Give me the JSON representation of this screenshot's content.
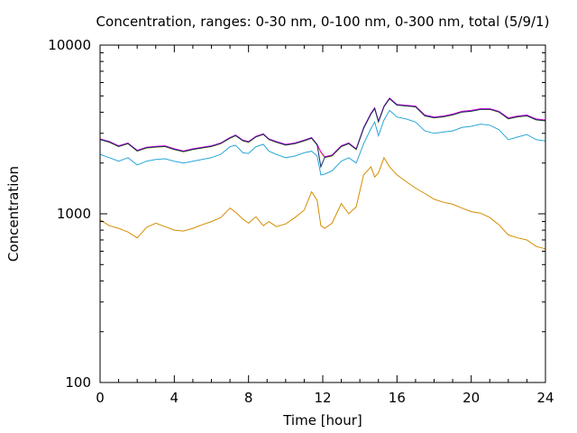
{
  "chart_data": {
    "type": "line",
    "title": "Concentration, ranges: 0-30 nm, 0-100 nm, 0-300 nm, total (5/9/1)",
    "xlabel": "Time [hour]",
    "ylabel": "Concentration",
    "xlim": [
      0,
      24
    ],
    "ylim": [
      100,
      10000
    ],
    "y_scale": "log",
    "grid": false,
    "x_ticks": [
      {
        "value": 0,
        "label": "0"
      },
      {
        "value": 4,
        "label": "4"
      },
      {
        "value": 8,
        "label": "8"
      },
      {
        "value": 12,
        "label": "12"
      },
      {
        "value": 16,
        "label": "16"
      },
      {
        "value": 20,
        "label": "20"
      },
      {
        "value": 24,
        "label": "24"
      }
    ],
    "y_ticks": [
      {
        "value": 100,
        "label": "100"
      },
      {
        "value": 1000,
        "label": "1000"
      },
      {
        "value": 10000,
        "label": "10000"
      }
    ],
    "x": [
      0,
      0.5,
      1,
      1.5,
      2,
      2.5,
      3,
      3.5,
      4,
      4.5,
      5,
      5.5,
      6,
      6.5,
      7,
      7.3,
      7.7,
      8,
      8.4,
      8.8,
      9.1,
      9.5,
      10,
      10.5,
      11,
      11.4,
      11.7,
      11.9,
      12.1,
      12.5,
      13,
      13.4,
      13.8,
      14.2,
      14.6,
      14.8,
      15,
      15.3,
      15.6,
      16,
      16.5,
      17,
      17.5,
      18,
      18.5,
      19,
      19.5,
      20,
      20.5,
      21,
      21.5,
      22,
      22.5,
      23,
      23.5,
      24
    ],
    "series": [
      {
        "color": "#c8c800",
        "values": [
          2750,
          2650,
          2500,
          2600,
          2350,
          2450,
          2480,
          2500,
          2400,
          2330,
          2400,
          2450,
          2500,
          2600,
          2800,
          2900,
          2700,
          2650,
          2850,
          2950,
          2750,
          2650,
          2550,
          2600,
          2700,
          2800,
          2550,
          2300,
          2150,
          2200,
          2500,
          2600,
          2400,
          3200,
          3900,
          4200,
          3500,
          4300,
          4800,
          4400,
          4350,
          4300,
          3800,
          3700,
          3750,
          3850,
          4000,
          4050,
          4150,
          4150,
          4000,
          3650,
          3750,
          3800,
          3600,
          3550
        ]
      },
      {
        "color": "#e000e0",
        "values": [
          2780,
          2680,
          2530,
          2630,
          2380,
          2480,
          2510,
          2530,
          2430,
          2360,
          2430,
          2480,
          2530,
          2630,
          2830,
          2930,
          2730,
          2680,
          2880,
          2980,
          2780,
          2680,
          2580,
          2630,
          2730,
          2830,
          2580,
          2330,
          2180,
          2230,
          2530,
          2630,
          2430,
          3240,
          3950,
          4250,
          3540,
          4350,
          4860,
          4450,
          4400,
          4350,
          3850,
          3750,
          3800,
          3900,
          4050,
          4100,
          4200,
          4200,
          4050,
          3700,
          3800,
          3850,
          3650,
          3600
        ]
      },
      {
        "color": "#0b2d6b",
        "values": [
          2760,
          2660,
          2510,
          2610,
          2360,
          2460,
          2490,
          2510,
          2410,
          2340,
          2410,
          2460,
          2510,
          2610,
          2810,
          2910,
          2710,
          2660,
          2860,
          2960,
          2760,
          2660,
          2560,
          2610,
          2710,
          2810,
          2560,
          1900,
          2160,
          2210,
          2510,
          2610,
          2410,
          3210,
          3910,
          4210,
          3510,
          4310,
          4810,
          4410,
          4360,
          4310,
          3810,
          3710,
          3760,
          3860,
          4010,
          4060,
          4160,
          4160,
          4010,
          3660,
          3760,
          3810,
          3610,
          3560
        ]
      },
      {
        "color": "#2ba6d8",
        "values": [
          2250,
          2150,
          2050,
          2150,
          1950,
          2050,
          2100,
          2120,
          2050,
          2000,
          2050,
          2100,
          2150,
          2250,
          2500,
          2550,
          2300,
          2280,
          2500,
          2580,
          2350,
          2250,
          2150,
          2200,
          2300,
          2350,
          2200,
          1700,
          1720,
          1800,
          2050,
          2150,
          2000,
          2600,
          3200,
          3500,
          2900,
          3600,
          4100,
          3750,
          3650,
          3500,
          3100,
          3000,
          3050,
          3100,
          3250,
          3300,
          3400,
          3350,
          3150,
          2750,
          2850,
          2950,
          2750,
          2700
        ]
      },
      {
        "color": "#d48c00",
        "values": [
          920,
          850,
          820,
          780,
          720,
          830,
          880,
          840,
          800,
          790,
          820,
          860,
          900,
          950,
          1080,
          1020,
          930,
          880,
          960,
          850,
          900,
          840,
          870,
          950,
          1050,
          1350,
          1200,
          850,
          820,
          880,
          1150,
          1000,
          1100,
          1700,
          1900,
          1650,
          1750,
          2150,
          1900,
          1700,
          1550,
          1420,
          1320,
          1220,
          1170,
          1140,
          1080,
          1030,
          1010,
          950,
          860,
          750,
          720,
          700,
          640,
          620
        ]
      }
    ]
  }
}
